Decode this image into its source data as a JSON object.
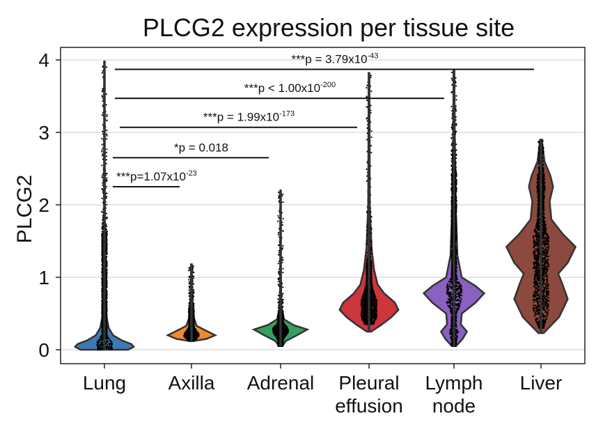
{
  "chart_data": {
    "type": "violin",
    "title": "PLCG2 expression per tissue site",
    "xlabel": "",
    "ylabel": "PLCG2",
    "ylim": [
      -0.2,
      4.15
    ],
    "yticks": [
      0,
      1,
      2,
      3,
      4
    ],
    "grid": true,
    "categories": [
      {
        "label_lines": [
          "Lung"
        ],
        "color": "#3d7ab3",
        "min": 0.0,
        "max": 3.98,
        "median": 0.08,
        "dense_max": 1.6,
        "dense_min": 0.0,
        "profile": [
          [
            0.0,
            0.55
          ],
          [
            0.04,
            0.68
          ],
          [
            0.08,
            0.62
          ],
          [
            0.13,
            0.4
          ],
          [
            0.2,
            0.2
          ],
          [
            0.3,
            0.1
          ],
          [
            0.45,
            0.05
          ],
          [
            0.7,
            0.03
          ],
          [
            1.0,
            0.025
          ],
          [
            1.5,
            0.015
          ],
          [
            2.5,
            0.008
          ],
          [
            3.98,
            0.005
          ]
        ]
      },
      {
        "label_lines": [
          "Axilla"
        ],
        "color": "#ef8a2f",
        "min": 0.12,
        "max": 1.18,
        "median": 0.2,
        "dense_max": 0.55,
        "dense_min": 0.12,
        "profile": [
          [
            0.12,
            0.05
          ],
          [
            0.15,
            0.35
          ],
          [
            0.2,
            0.55
          ],
          [
            0.26,
            0.35
          ],
          [
            0.33,
            0.12
          ],
          [
            0.45,
            0.05
          ],
          [
            0.7,
            0.02
          ],
          [
            1.18,
            0.01
          ]
        ]
      },
      {
        "label_lines": [
          "Adrenal"
        ],
        "color": "#34a060",
        "min": 0.05,
        "max": 2.2,
        "median": 0.28,
        "dense_max": 0.45,
        "dense_min": 0.05,
        "profile": [
          [
            0.05,
            0.04
          ],
          [
            0.12,
            0.12
          ],
          [
            0.2,
            0.38
          ],
          [
            0.28,
            0.62
          ],
          [
            0.34,
            0.3
          ],
          [
            0.42,
            0.08
          ],
          [
            0.6,
            0.02
          ],
          [
            1.0,
            0.01
          ],
          [
            2.2,
            0.005
          ]
        ]
      },
      {
        "label_lines": [
          "Pleural",
          "effusion"
        ],
        "color": "#cd363a",
        "min": 0.25,
        "max": 3.82,
        "median": 0.6,
        "dense_max": 1.2,
        "dense_min": 0.35,
        "profile": [
          [
            0.25,
            0.05
          ],
          [
            0.35,
            0.3
          ],
          [
            0.45,
            0.52
          ],
          [
            0.55,
            0.68
          ],
          [
            0.65,
            0.6
          ],
          [
            0.78,
            0.35
          ],
          [
            0.9,
            0.2
          ],
          [
            1.1,
            0.12
          ],
          [
            1.4,
            0.06
          ],
          [
            2.0,
            0.02
          ],
          [
            3.82,
            0.008
          ]
        ]
      },
      {
        "label_lines": [
          "Lymph",
          "node"
        ],
        "color": "#8a60c0",
        "min": 0.05,
        "max": 3.85,
        "median": 0.8,
        "dense_max": 2.4,
        "dense_min": 0.05,
        "profile": [
          [
            0.05,
            0.05
          ],
          [
            0.15,
            0.2
          ],
          [
            0.25,
            0.3
          ],
          [
            0.35,
            0.16
          ],
          [
            0.5,
            0.18
          ],
          [
            0.65,
            0.5
          ],
          [
            0.78,
            0.7
          ],
          [
            0.88,
            0.5
          ],
          [
            1.0,
            0.18
          ],
          [
            1.3,
            0.08
          ],
          [
            2.0,
            0.04
          ],
          [
            3.0,
            0.02
          ],
          [
            3.85,
            0.01
          ]
        ]
      },
      {
        "label_lines": [
          "Liver"
        ],
        "color": "#8b4a3d",
        "min": 0.23,
        "max": 2.9,
        "median": 1.3,
        "dense_max": 2.4,
        "dense_min": 0.3,
        "profile": [
          [
            0.23,
            0.06
          ],
          [
            0.45,
            0.42
          ],
          [
            0.7,
            0.62
          ],
          [
            0.9,
            0.5
          ],
          [
            1.05,
            0.4
          ],
          [
            1.2,
            0.62
          ],
          [
            1.42,
            0.8
          ],
          [
            1.6,
            0.5
          ],
          [
            1.8,
            0.24
          ],
          [
            2.05,
            0.2
          ],
          [
            2.25,
            0.28
          ],
          [
            2.4,
            0.22
          ],
          [
            2.6,
            0.08
          ],
          [
            2.9,
            0.02
          ]
        ]
      }
    ],
    "annotations": [
      {
        "from": 0,
        "to": 5,
        "y": 3.87,
        "prefix": "***p = 3.79x10",
        "exponent": "-43"
      },
      {
        "from": 0,
        "to": 4,
        "y": 3.47,
        "prefix": "***p < 1.00x10",
        "exponent": "-200"
      },
      {
        "from": 0,
        "to": 3,
        "y": 3.07,
        "prefix": "***p = 1.99x10",
        "exponent": "-173"
      },
      {
        "from": 0,
        "to": 2,
        "y": 2.65,
        "prefix": "*p = 0.018",
        "exponent": ""
      },
      {
        "from": 0,
        "to": 1,
        "y": 2.25,
        "prefix": "***p=1.07x10",
        "exponent": "-23"
      }
    ]
  }
}
